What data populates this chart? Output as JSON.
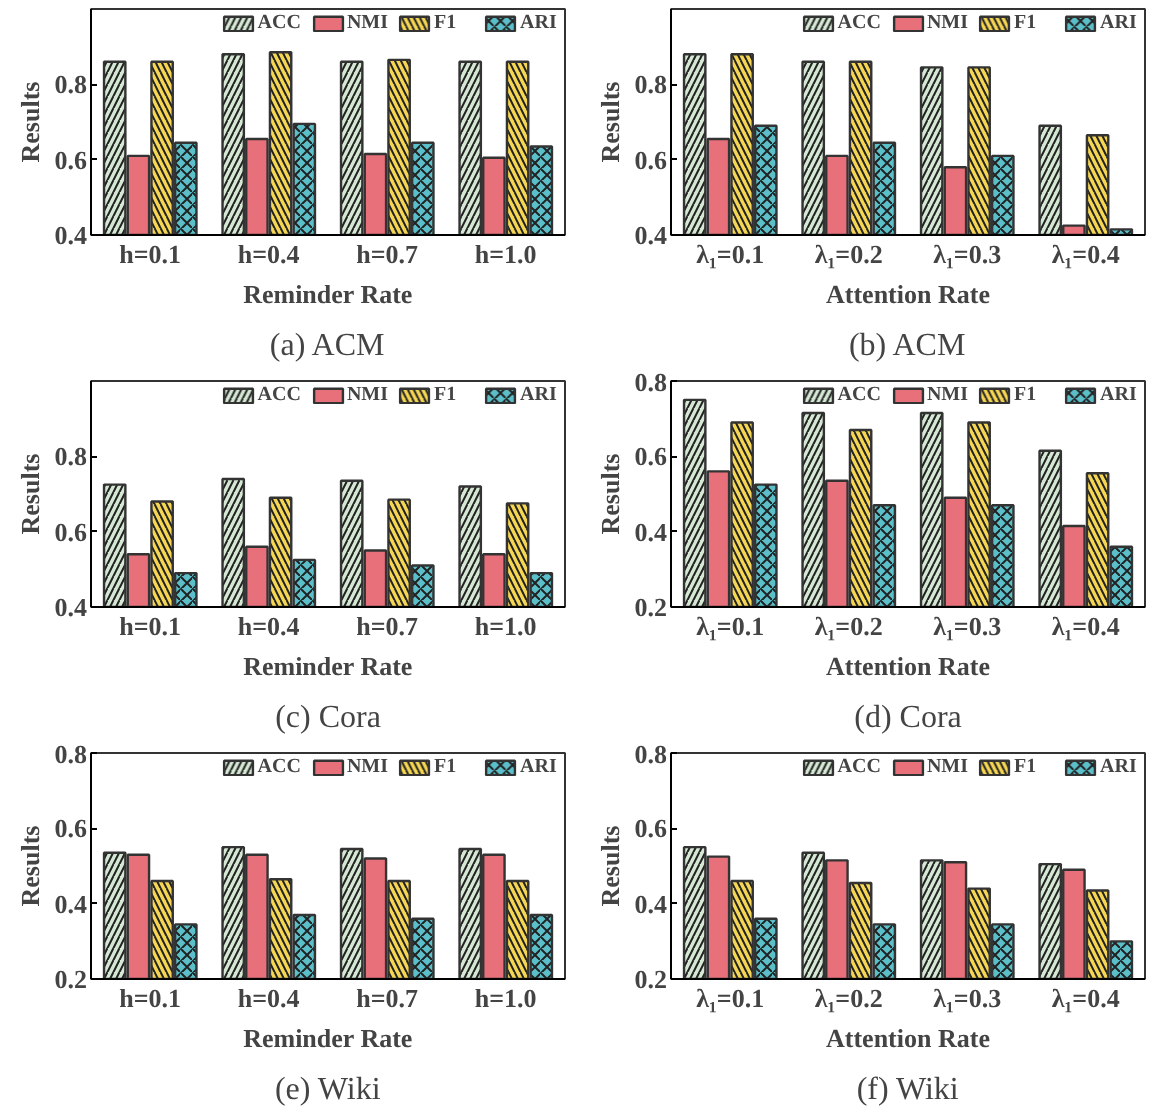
{
  "chart_data": [
    {
      "type": "bar",
      "title": "(a) ACM",
      "xlabel": "Reminder Rate",
      "ylabel": "Results",
      "categories": [
        "h=0.1",
        "h=0.4",
        "h=0.7",
        "h=1.0"
      ],
      "ylim": [
        0.4,
        1.0
      ],
      "yticks": [
        0.4,
        0.6,
        0.8
      ],
      "grid": false,
      "legend": "top right",
      "series": [
        {
          "name": "ACC",
          "color": "#d5e8d4",
          "values": [
            0.86,
            0.88,
            0.86,
            0.86
          ]
        },
        {
          "name": "NMI",
          "color": "#e8707a",
          "values": [
            0.61,
            0.655,
            0.615,
            0.605
          ]
        },
        {
          "name": "F1",
          "color": "#f5d653",
          "values": [
            0.86,
            0.885,
            0.865,
            0.86
          ]
        },
        {
          "name": "ARI",
          "color": "#5bbfc9",
          "values": [
            0.645,
            0.695,
            0.645,
            0.635
          ]
        }
      ]
    },
    {
      "type": "bar",
      "title": "(b) ACM",
      "xlabel": "Attention Rate",
      "ylabel": "Results",
      "categories": [
        "λ₁=0.1",
        "λ₁=0.2",
        "λ₁=0.3",
        "λ₁=0.4"
      ],
      "ylim": [
        0.4,
        1.0
      ],
      "yticks": [
        0.4,
        0.6,
        0.8
      ],
      "grid": false,
      "legend": "top right",
      "series": [
        {
          "name": "ACC",
          "color": "#d5e8d4",
          "values": [
            0.88,
            0.86,
            0.845,
            0.69
          ]
        },
        {
          "name": "NMI",
          "color": "#e8707a",
          "values": [
            0.655,
            0.61,
            0.58,
            0.425
          ]
        },
        {
          "name": "F1",
          "color": "#f5d653",
          "values": [
            0.88,
            0.86,
            0.845,
            0.665
          ]
        },
        {
          "name": "ARI",
          "color": "#5bbfc9",
          "values": [
            0.69,
            0.645,
            0.61,
            0.415
          ]
        }
      ]
    },
    {
      "type": "bar",
      "title": "(c) Cora",
      "xlabel": "Reminder Rate",
      "ylabel": "Results",
      "categories": [
        "h=0.1",
        "h=0.4",
        "h=0.7",
        "h=1.0"
      ],
      "ylim": [
        0.4,
        1.0
      ],
      "yticks": [
        0.4,
        0.6,
        0.8
      ],
      "grid": false,
      "legend": "top right",
      "series": [
        {
          "name": "ACC",
          "color": "#d5e8d4",
          "values": [
            0.725,
            0.74,
            0.735,
            0.72
          ]
        },
        {
          "name": "NMI",
          "color": "#e8707a",
          "values": [
            0.54,
            0.56,
            0.55,
            0.54
          ]
        },
        {
          "name": "F1",
          "color": "#f5d653",
          "values": [
            0.68,
            0.69,
            0.685,
            0.675
          ]
        },
        {
          "name": "ARI",
          "color": "#5bbfc9",
          "values": [
            0.49,
            0.525,
            0.51,
            0.49
          ]
        }
      ]
    },
    {
      "type": "bar",
      "title": "(d) Cora",
      "xlabel": "Attention Rate",
      "ylabel": "Results",
      "categories": [
        "λ₁=0.1",
        "λ₁=0.2",
        "λ₁=0.3",
        "λ₁=0.4"
      ],
      "ylim": [
        0.2,
        0.8
      ],
      "yticks": [
        0.2,
        0.4,
        0.6,
        0.8
      ],
      "grid": false,
      "legend": "top right",
      "series": [
        {
          "name": "ACC",
          "color": "#d5e8d4",
          "values": [
            0.75,
            0.715,
            0.715,
            0.615
          ]
        },
        {
          "name": "NMI",
          "color": "#e8707a",
          "values": [
            0.56,
            0.535,
            0.49,
            0.415
          ]
        },
        {
          "name": "F1",
          "color": "#f5d653",
          "values": [
            0.69,
            0.67,
            0.69,
            0.555
          ]
        },
        {
          "name": "ARI",
          "color": "#5bbfc9",
          "values": [
            0.525,
            0.47,
            0.47,
            0.36
          ]
        }
      ]
    },
    {
      "type": "bar",
      "title": "(e) Wiki",
      "xlabel": "Reminder Rate",
      "ylabel": "Results",
      "categories": [
        "h=0.1",
        "h=0.4",
        "h=0.7",
        "h=1.0"
      ],
      "ylim": [
        0.2,
        0.8
      ],
      "yticks": [
        0.2,
        0.4,
        0.6,
        0.8
      ],
      "grid": false,
      "legend": "top right",
      "series": [
        {
          "name": "ACC",
          "color": "#d5e8d4",
          "values": [
            0.535,
            0.55,
            0.545,
            0.545
          ]
        },
        {
          "name": "NMI",
          "color": "#e8707a",
          "values": [
            0.53,
            0.53,
            0.52,
            0.53
          ]
        },
        {
          "name": "F1",
          "color": "#f5d653",
          "values": [
            0.46,
            0.465,
            0.46,
            0.46
          ]
        },
        {
          "name": "ARI",
          "color": "#5bbfc9",
          "values": [
            0.345,
            0.37,
            0.36,
            0.37
          ]
        }
      ]
    },
    {
      "type": "bar",
      "title": "(f) Wiki",
      "xlabel": "Attention Rate",
      "ylabel": "Results",
      "categories": [
        "λ₁=0.1",
        "λ₁=0.2",
        "λ₁=0.3",
        "λ₁=0.4"
      ],
      "ylim": [
        0.2,
        0.8
      ],
      "yticks": [
        0.2,
        0.4,
        0.6,
        0.8
      ],
      "grid": false,
      "legend": "top right",
      "series": [
        {
          "name": "ACC",
          "color": "#d5e8d4",
          "values": [
            0.55,
            0.535,
            0.515,
            0.505
          ]
        },
        {
          "name": "NMI",
          "color": "#e8707a",
          "values": [
            0.525,
            0.515,
            0.51,
            0.49
          ]
        },
        {
          "name": "F1",
          "color": "#f5d653",
          "values": [
            0.46,
            0.455,
            0.44,
            0.435
          ]
        },
        {
          "name": "ARI",
          "color": "#5bbfc9",
          "values": [
            0.36,
            0.345,
            0.345,
            0.3
          ]
        }
      ]
    }
  ]
}
